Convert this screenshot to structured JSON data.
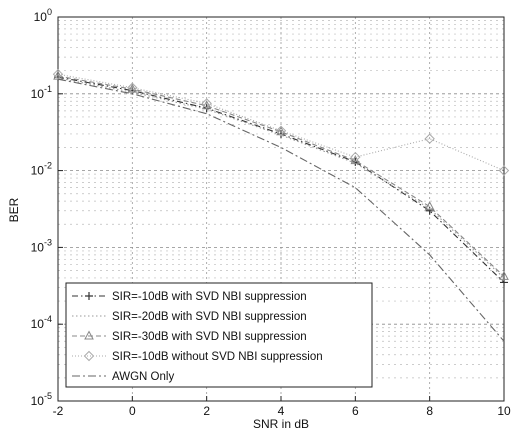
{
  "chart_data": {
    "type": "line",
    "xlabel": "SNR in dB",
    "ylabel": "BER",
    "xlim": [
      -2,
      10
    ],
    "ylim_log10": [
      -5,
      0
    ],
    "y_scale": "log",
    "x_ticks": [
      {
        "value": -2,
        "label": "-2"
      },
      {
        "value": 0,
        "label": "0"
      },
      {
        "value": 2,
        "label": "2"
      },
      {
        "value": 4,
        "label": "4"
      },
      {
        "value": 6,
        "label": "6"
      },
      {
        "value": 8,
        "label": "8"
      },
      {
        "value": 10,
        "label": "10"
      }
    ],
    "y_ticks": [
      {
        "exp": 0,
        "base": "10",
        "sup": "0"
      },
      {
        "exp": -1,
        "base": "10",
        "sup": "-1"
      },
      {
        "exp": -2,
        "base": "10",
        "sup": "-2"
      },
      {
        "exp": -3,
        "base": "10",
        "sup": "-3"
      },
      {
        "exp": -4,
        "base": "10",
        "sup": "-4"
      },
      {
        "exp": -5,
        "base": "10",
        "sup": "-5"
      }
    ],
    "grid": true,
    "legend_position": "bottom-left",
    "series": [
      {
        "name": "SIR=-10dB with SVD NBI suppression",
        "color": "#333333",
        "dash": "6,3,1.5,3",
        "marker": "plus",
        "x": [
          -2,
          0,
          2,
          4,
          6,
          8,
          10
        ],
        "y": [
          0.165,
          0.11,
          0.065,
          0.03,
          0.013,
          0.003,
          0.00035
        ]
      },
      {
        "name": "SIR=-20dB with SVD NBI suppression",
        "color": "#9a9a9a",
        "dash": "1.5,2.5",
        "marker": "none",
        "x": [
          -2,
          0,
          2,
          4,
          6,
          8,
          10
        ],
        "y": [
          0.16,
          0.105,
          0.063,
          0.029,
          0.0125,
          0.0032,
          0.0004
        ]
      },
      {
        "name": "SIR=-30dB with SVD NBI suppression",
        "color": "#888888",
        "dash": "5,3",
        "marker": "triangle",
        "x": [
          -2,
          0,
          2,
          4,
          6,
          8,
          10
        ],
        "y": [
          0.17,
          0.115,
          0.07,
          0.032,
          0.0135,
          0.0034,
          0.00042
        ]
      },
      {
        "name": "SIR=-10dB without SVD NBI suppression",
        "color": "#aaaaaa",
        "dash": "1,2",
        "marker": "diamond",
        "x": [
          -2,
          0,
          2,
          4,
          6,
          8,
          10
        ],
        "y": [
          0.18,
          0.12,
          0.075,
          0.033,
          0.015,
          0.026,
          0.01
        ]
      },
      {
        "name": "AWGN Only",
        "color": "#666666",
        "dash": "8,3,2,3",
        "marker": "none",
        "x": [
          -2,
          0,
          2,
          4,
          6,
          8,
          10
        ],
        "y": [
          0.155,
          0.1,
          0.055,
          0.02,
          0.006,
          0.0008,
          6e-05
        ]
      }
    ]
  }
}
